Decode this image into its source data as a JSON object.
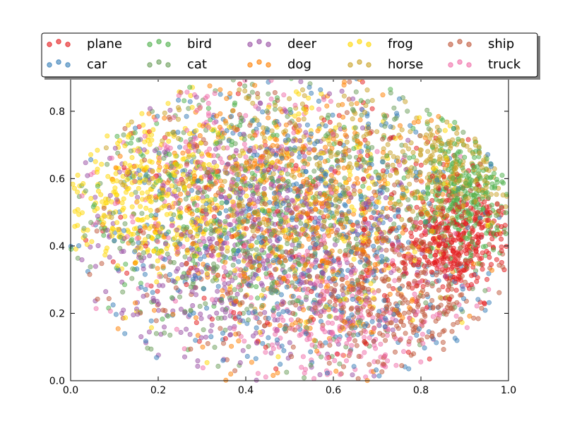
{
  "chart_data": {
    "type": "scatter",
    "title": "",
    "xlabel": "",
    "ylabel": "",
    "xlim": [
      0.0,
      1.0
    ],
    "ylim": [
      0.0,
      0.9
    ],
    "x_ticks": [
      "0.0",
      "0.2",
      "0.4",
      "0.6",
      "0.8",
      "1.0"
    ],
    "y_ticks": [
      "0.0",
      "0.2",
      "0.4",
      "0.6",
      "0.8"
    ],
    "legend_position": "top, above plot",
    "grid": false,
    "point_alpha": 0.5,
    "series": [
      {
        "name": "plane",
        "color": "#e41a1c",
        "clusters": [
          {
            "cx": 0.88,
            "cy": 0.42,
            "sx": 0.07,
            "sy": 0.08,
            "w": 2
          },
          {
            "cx": 0.55,
            "cy": 0.45,
            "sx": 0.25,
            "sy": 0.25,
            "w": 1
          }
        ]
      },
      {
        "name": "car",
        "color": "#377eb8",
        "clusters": [
          {
            "cx": 0.55,
            "cy": 0.45,
            "sx": 0.25,
            "sy": 0.25,
            "w": 1
          }
        ]
      },
      {
        "name": "bird",
        "color": "#4daf4a",
        "clusters": [
          {
            "cx": 0.35,
            "cy": 0.55,
            "sx": 0.2,
            "sy": 0.2,
            "w": 1
          },
          {
            "cx": 0.9,
            "cy": 0.55,
            "sx": 0.06,
            "sy": 0.1,
            "w": 1
          }
        ]
      },
      {
        "name": "cat",
        "color": "#6b9e5a",
        "clusters": [
          {
            "cx": 0.45,
            "cy": 0.45,
            "sx": 0.22,
            "sy": 0.22,
            "w": 1
          }
        ]
      },
      {
        "name": "deer",
        "color": "#984ea3",
        "clusters": [
          {
            "cx": 0.4,
            "cy": 0.4,
            "sx": 0.2,
            "sy": 0.2,
            "w": 1
          }
        ]
      },
      {
        "name": "dog",
        "color": "#ff7f00",
        "clusters": [
          {
            "cx": 0.5,
            "cy": 0.5,
            "sx": 0.2,
            "sy": 0.2,
            "w": 1
          }
        ]
      },
      {
        "name": "frog",
        "color": "#ffd700",
        "clusters": [
          {
            "cx": 0.18,
            "cy": 0.55,
            "sx": 0.1,
            "sy": 0.12,
            "w": 2
          },
          {
            "cx": 0.55,
            "cy": 0.55,
            "sx": 0.2,
            "sy": 0.2,
            "w": 1
          }
        ]
      },
      {
        "name": "horse",
        "color": "#c9a227",
        "clusters": [
          {
            "cx": 0.6,
            "cy": 0.6,
            "sx": 0.2,
            "sy": 0.15,
            "w": 2
          },
          {
            "cx": 0.88,
            "cy": 0.62,
            "sx": 0.07,
            "sy": 0.08,
            "w": 1
          }
        ]
      },
      {
        "name": "ship",
        "color": "#c0573a",
        "clusters": [
          {
            "cx": 0.75,
            "cy": 0.25,
            "sx": 0.12,
            "sy": 0.12,
            "w": 2
          },
          {
            "cx": 0.45,
            "cy": 0.5,
            "sx": 0.25,
            "sy": 0.25,
            "w": 1
          }
        ]
      },
      {
        "name": "truck",
        "color": "#f06ea9",
        "clusters": [
          {
            "cx": 0.65,
            "cy": 0.15,
            "sx": 0.12,
            "sy": 0.1,
            "w": 1
          },
          {
            "cx": 0.35,
            "cy": 0.65,
            "sx": 0.15,
            "sy": 0.15,
            "w": 1
          },
          {
            "cx": 0.5,
            "cy": 0.35,
            "sx": 0.25,
            "sy": 0.2,
            "w": 1
          }
        ]
      }
    ]
  }
}
